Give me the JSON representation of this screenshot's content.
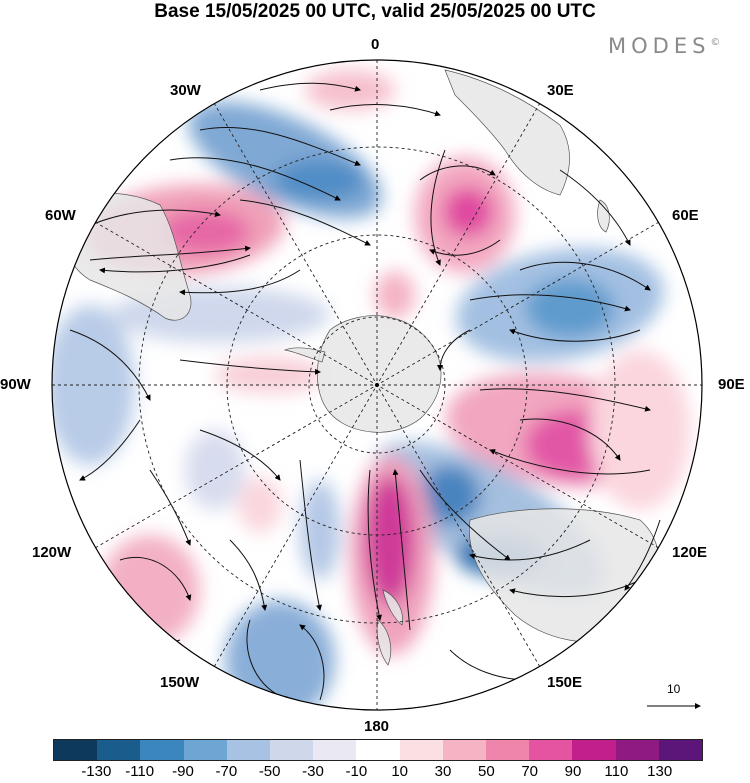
{
  "header": {
    "title": "Base 15/05/2025 00 UTC, valid 25/05/2025 00 UTC",
    "brand": "MODES",
    "brand_mark": "©"
  },
  "map": {
    "projection": "south-polar-stereographic",
    "longitude_labels": {
      "top": "0",
      "top_right": "30E",
      "right_upper": "60E",
      "right": "90E",
      "right_lower": "120E",
      "bottom_right": "150E",
      "bottom": "180",
      "bottom_left": "150W",
      "left_lower": "120W",
      "left": "90W",
      "left_upper": "60W",
      "top_left": "30W"
    },
    "vector_scale_label": "10",
    "land_color": "#e6e6e6",
    "ocean_color": "#ffffff"
  },
  "colorbar": {
    "colors": [
      "#0d3a5c",
      "#1a5c8c",
      "#3a86bd",
      "#6ea6d3",
      "#a7c2e2",
      "#cfd7ea",
      "#eae9f3",
      "#ffffff",
      "#fbe0e3",
      "#f5b4c3",
      "#ee85aa",
      "#e454a0",
      "#c21f8c",
      "#8e1a82",
      "#5c1578"
    ],
    "tick_labels": [
      "-130",
      "-110",
      "-90",
      "-70",
      "-50",
      "-30",
      "-10",
      "10",
      "30",
      "50",
      "70",
      "90",
      "110",
      "130"
    ]
  }
}
